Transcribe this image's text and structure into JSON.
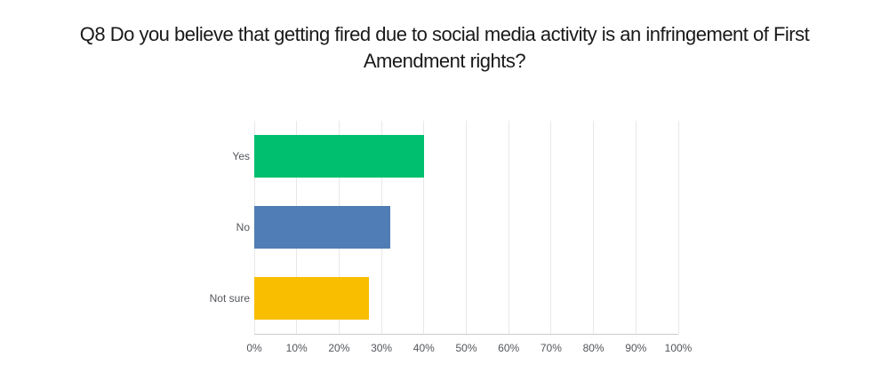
{
  "page": {
    "background": "#ffffff"
  },
  "title_lines": {
    "line1": "Q8 Do you believe that getting fired due to social media activity is an infringement of First",
    "line2": "Amendment rights?"
  },
  "chart_data": {
    "type": "bar",
    "orientation": "horizontal",
    "title": "Q8 Do you believe that getting fired due to social media activity is an infringement of First Amendment rights?",
    "categories": [
      "Yes",
      "No",
      "Not sure"
    ],
    "values": [
      40,
      32,
      27
    ],
    "unit": "%",
    "bar_colors": [
      "#00bf6f",
      "#507db5",
      "#f9be00"
    ],
    "x_axis": {
      "min": 0,
      "max": 100,
      "ticks": [
        "0%",
        "10%",
        "20%",
        "30%",
        "40%",
        "50%",
        "60%",
        "70%",
        "80%",
        "90%",
        "100%"
      ]
    },
    "grid": true,
    "legend": false,
    "colors": {
      "gridline": "#e8e8e8",
      "axis_line": "#cbcbcb",
      "label_text": "#54565b",
      "title_text": "#1a1a1a"
    }
  }
}
